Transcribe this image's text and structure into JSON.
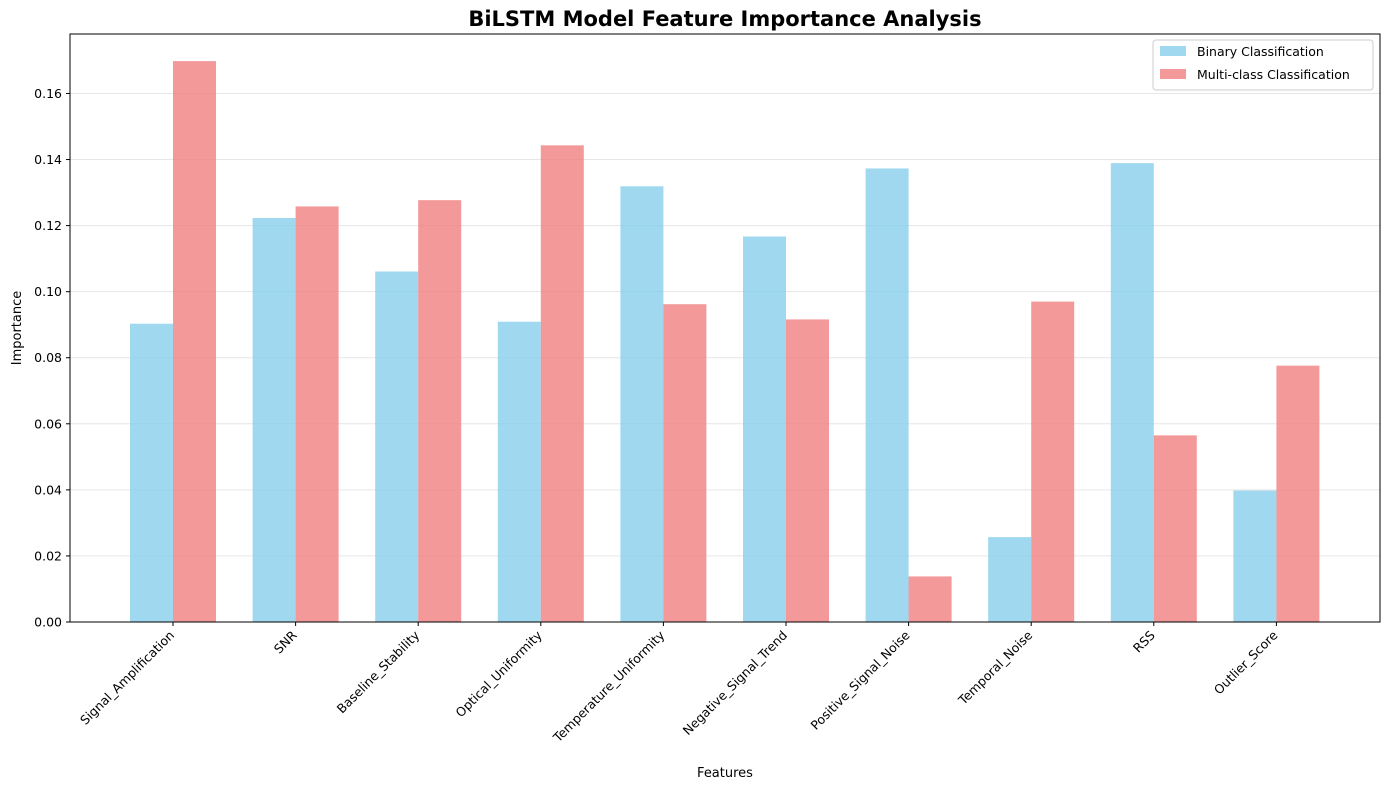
{
  "chart_data": {
    "type": "bar",
    "title": "BiLSTM Model Feature Importance Analysis",
    "xlabel": "Features",
    "ylabel": "Importance",
    "ylim": [
      0,
      0.178
    ],
    "yticks": [
      "0.00",
      "0.02",
      "0.04",
      "0.06",
      "0.08",
      "0.10",
      "0.12",
      "0.14",
      "0.16"
    ],
    "grid": "y",
    "legend_position": "top-right",
    "categories": [
      "Signal_Amplification",
      "SNR",
      "Baseline_Stability",
      "Optical_Uniformity",
      "Temperature_Uniformity",
      "Negative_Signal_Trend",
      "Positive_Signal_Noise",
      "Temporal_Noise",
      "RSS",
      "Outlier_Score"
    ],
    "series": [
      {
        "name": "Binary Classification",
        "color": "#87CEEB",
        "values": [
          0.0903,
          0.1223,
          0.1061,
          0.0909,
          0.1319,
          0.1167,
          0.1373,
          0.0257,
          0.1389,
          0.0398
        ]
      },
      {
        "name": "Multi-class Classification",
        "color": "#F08080",
        "values": [
          0.1698,
          0.1258,
          0.1277,
          0.1443,
          0.0962,
          0.0916,
          0.0138,
          0.097,
          0.0565,
          0.0776
        ]
      }
    ]
  }
}
